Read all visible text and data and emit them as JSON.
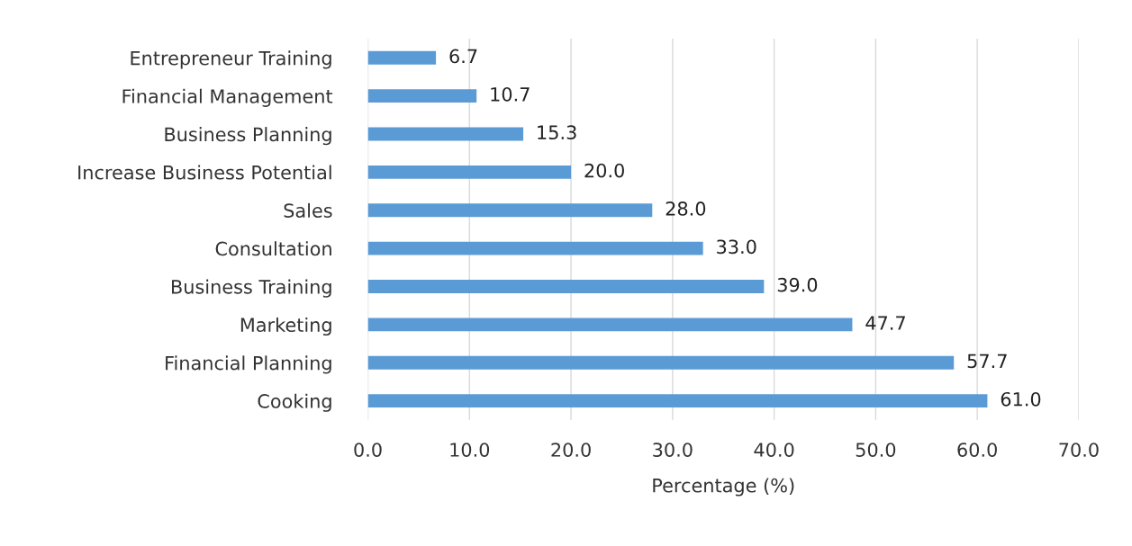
{
  "chart_data": {
    "type": "bar",
    "orientation": "horizontal",
    "xlabel": "Percentage (%)",
    "categories": [
      "Entrepreneur Training",
      "Financial Management",
      "Business Planning",
      "Increase Business Potential",
      "Sales",
      "Consultation",
      "Business Training",
      "Marketing",
      "Financial Planning",
      "Cooking"
    ],
    "values": [
      6.7,
      10.7,
      15.3,
      20.0,
      28.0,
      33.0,
      39.0,
      47.7,
      57.7,
      61.0
    ],
    "value_labels": [
      "6.7",
      "10.7",
      "15.3",
      "20.0",
      "28.0",
      "33.0",
      "39.0",
      "47.7",
      "57.7",
      "61.0"
    ],
    "color": "#5b9bd5",
    "xlim": [
      0,
      70
    ],
    "xticks": [
      {
        "value": 0,
        "label": "0.0"
      },
      {
        "value": 10,
        "label": "10.0"
      },
      {
        "value": 20,
        "label": "20.0"
      },
      {
        "value": 30,
        "label": "30.0"
      },
      {
        "value": 40,
        "label": "40.0"
      },
      {
        "value": 50,
        "label": "50.0"
      },
      {
        "value": 60,
        "label": "60.0"
      },
      {
        "value": 70,
        "label": "70.0"
      }
    ],
    "grid": "x"
  }
}
